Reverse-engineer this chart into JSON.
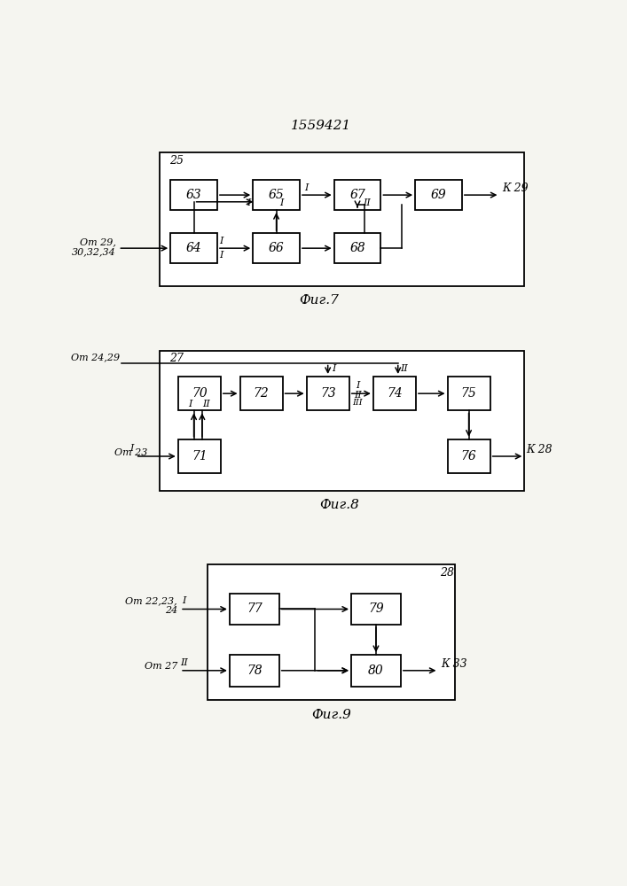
{
  "title": "1559421",
  "fig7_caption": "Фиг.7",
  "fig8_caption": "Фиг.8",
  "fig9_caption": "Фиг.9",
  "bg_color": "#f5f5f0"
}
